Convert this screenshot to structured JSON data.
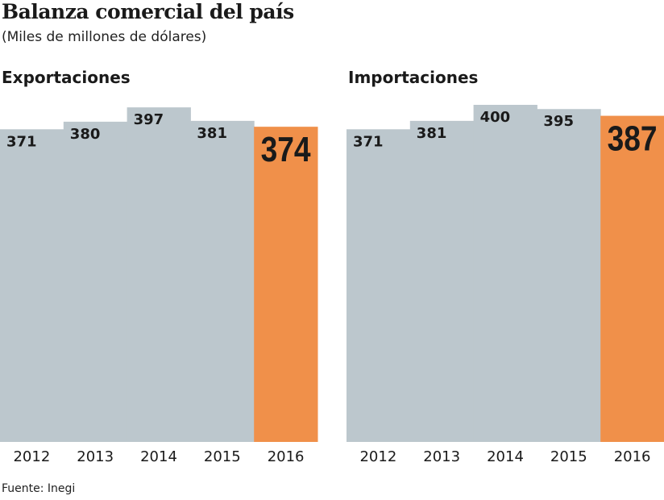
{
  "title": "Balanza comercial del país",
  "subtitle": "(Miles de millones de dólares)",
  "source": "Fuente: Inegi",
  "colors": {
    "bar": "#bcc7cd",
    "highlight": "#f0904a"
  },
  "chart_data": [
    {
      "type": "bar",
      "title": "Exportaciones",
      "categories": [
        "2012",
        "2013",
        "2014",
        "2015",
        "2016"
      ],
      "values": [
        371,
        380,
        397,
        381,
        374
      ],
      "highlight": "2016",
      "ylim": [
        0,
        400
      ],
      "grid": false
    },
    {
      "type": "bar",
      "title": "Importaciones",
      "categories": [
        "2012",
        "2013",
        "2014",
        "2015",
        "2016"
      ],
      "values": [
        371,
        381,
        400,
        395,
        387
      ],
      "highlight": "2016",
      "ylim": [
        0,
        400
      ],
      "grid": false
    }
  ]
}
